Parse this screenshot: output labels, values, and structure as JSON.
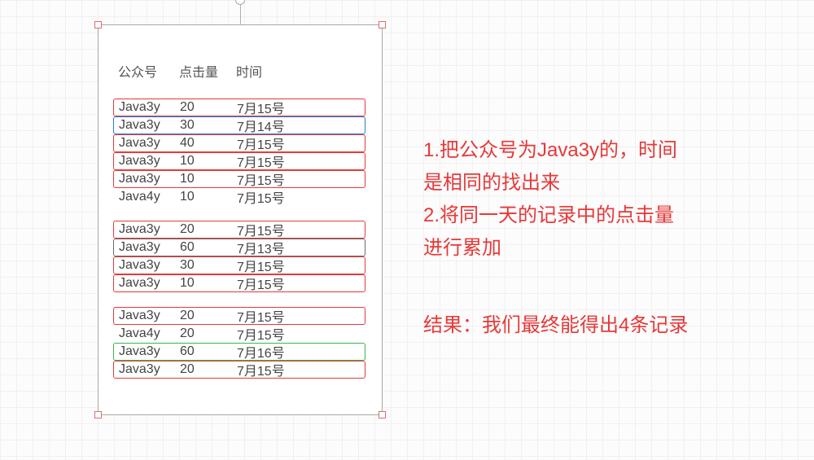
{
  "colors": {
    "red_border": "#e63939",
    "blue_border": "#2a7ad4",
    "gray_border": "#6b6b6b",
    "green_border": "#39b54a",
    "text_red": "#e63939"
  },
  "headers": {
    "col1": "公众号",
    "col2": "点击量",
    "col3": "时间"
  },
  "groups": [
    {
      "rows": [
        {
          "c1": "Java3y",
          "c2": "20",
          "c3": "7月15号",
          "box": "red"
        },
        {
          "c1": "Java3y",
          "c2": "30",
          "c3": "7月14号",
          "box": "blue"
        },
        {
          "c1": "Java3y",
          "c2": "40",
          "c3": "7月15号",
          "box": "red"
        },
        {
          "c1": "Java3y",
          "c2": "10",
          "c3": "7月15号",
          "box": "red"
        },
        {
          "c1": "Java3y",
          "c2": "10",
          "c3": "7月15号",
          "box": "red"
        },
        {
          "c1": "Java4y",
          "c2": "10",
          "c3": "7月15号",
          "box": "none"
        }
      ]
    },
    {
      "rows": [
        {
          "c1": "Java3y",
          "c2": "20",
          "c3": "7月15号",
          "box": "red"
        },
        {
          "c1": "Java3y",
          "c2": "60",
          "c3": "7月13号",
          "box": "gray"
        },
        {
          "c1": "Java3y",
          "c2": "30",
          "c3": "7月15号",
          "box": "red"
        },
        {
          "c1": "Java3y",
          "c2": "10",
          "c3": "7月15号",
          "box": "red"
        }
      ]
    },
    {
      "rows": [
        {
          "c1": "Java3y",
          "c2": "20",
          "c3": "7月15号",
          "box": "red"
        },
        {
          "c1": "Java4y",
          "c2": "20",
          "c3": "7月15号",
          "box": "none"
        },
        {
          "c1": "Java3y",
          "c2": "60",
          "c3": "7月16号",
          "box": "green"
        },
        {
          "c1": "Java3y",
          "c2": "20",
          "c3": "7月15号",
          "box": "red"
        }
      ]
    }
  ],
  "explain": {
    "line1": "1.把公众号为Java3y的，时间",
    "line2": "是相同的找出来",
    "line3": "2.将同一天的记录中的点击量",
    "line4": "进行累加"
  },
  "result": "结果：我们最终能得出4条记录"
}
